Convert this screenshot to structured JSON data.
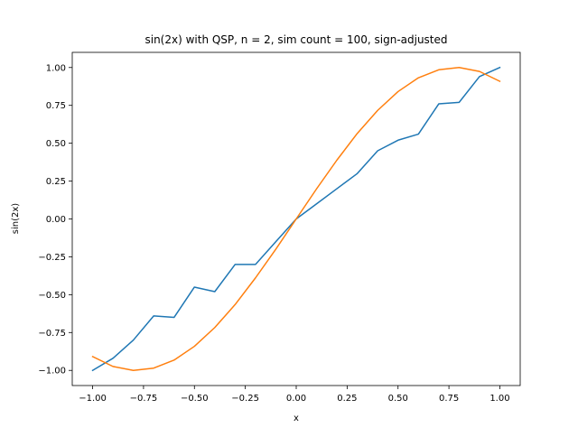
{
  "chart_data": {
    "type": "line",
    "title": "sin(2x) with QSP, n = 2, sim count = 100, sign-adjusted",
    "xlabel": "x",
    "ylabel": "sin(2x)",
    "xlim": [
      -1.1,
      1.1
    ],
    "ylim": [
      -1.1,
      1.1
    ],
    "x_ticks": [
      -1.0,
      -0.75,
      -0.5,
      -0.25,
      0.0,
      0.25,
      0.5,
      0.75,
      1.0
    ],
    "x_tick_labels": [
      "−1.00",
      "−0.75",
      "−0.50",
      "−0.25",
      "0.00",
      "0.25",
      "0.50",
      "0.75",
      "1.00"
    ],
    "y_ticks": [
      -1.0,
      -0.75,
      -0.5,
      -0.25,
      0.0,
      0.25,
      0.5,
      0.75,
      1.0
    ],
    "y_tick_labels": [
      "−1.00",
      "−0.75",
      "−0.50",
      "−0.25",
      "0.00",
      "0.25",
      "0.50",
      "0.75",
      "1.00"
    ],
    "grid": false,
    "legend": false,
    "x": [
      -1.0,
      -0.9,
      -0.8,
      -0.7,
      -0.6,
      -0.5,
      -0.4,
      -0.3,
      -0.2,
      -0.1,
      0.0,
      0.1,
      0.2,
      0.3,
      0.4,
      0.5,
      0.6,
      0.7,
      0.8,
      0.9,
      1.0
    ],
    "series": [
      {
        "color": "#1f77b4",
        "values": [
          -1.0,
          -0.92,
          -0.8,
          -0.64,
          -0.65,
          -0.45,
          -0.48,
          -0.3,
          -0.3,
          -0.15,
          0.0,
          0.1,
          0.2,
          0.3,
          0.45,
          0.52,
          0.56,
          0.76,
          0.77,
          0.94,
          1.0
        ]
      },
      {
        "color": "#ff7f0e",
        "values": [
          -0.909,
          -0.974,
          -1.0,
          -0.985,
          -0.932,
          -0.841,
          -0.717,
          -0.565,
          -0.389,
          -0.199,
          0.0,
          0.199,
          0.389,
          0.565,
          0.717,
          0.841,
          0.932,
          0.985,
          1.0,
          0.974,
          0.909
        ]
      }
    ]
  }
}
